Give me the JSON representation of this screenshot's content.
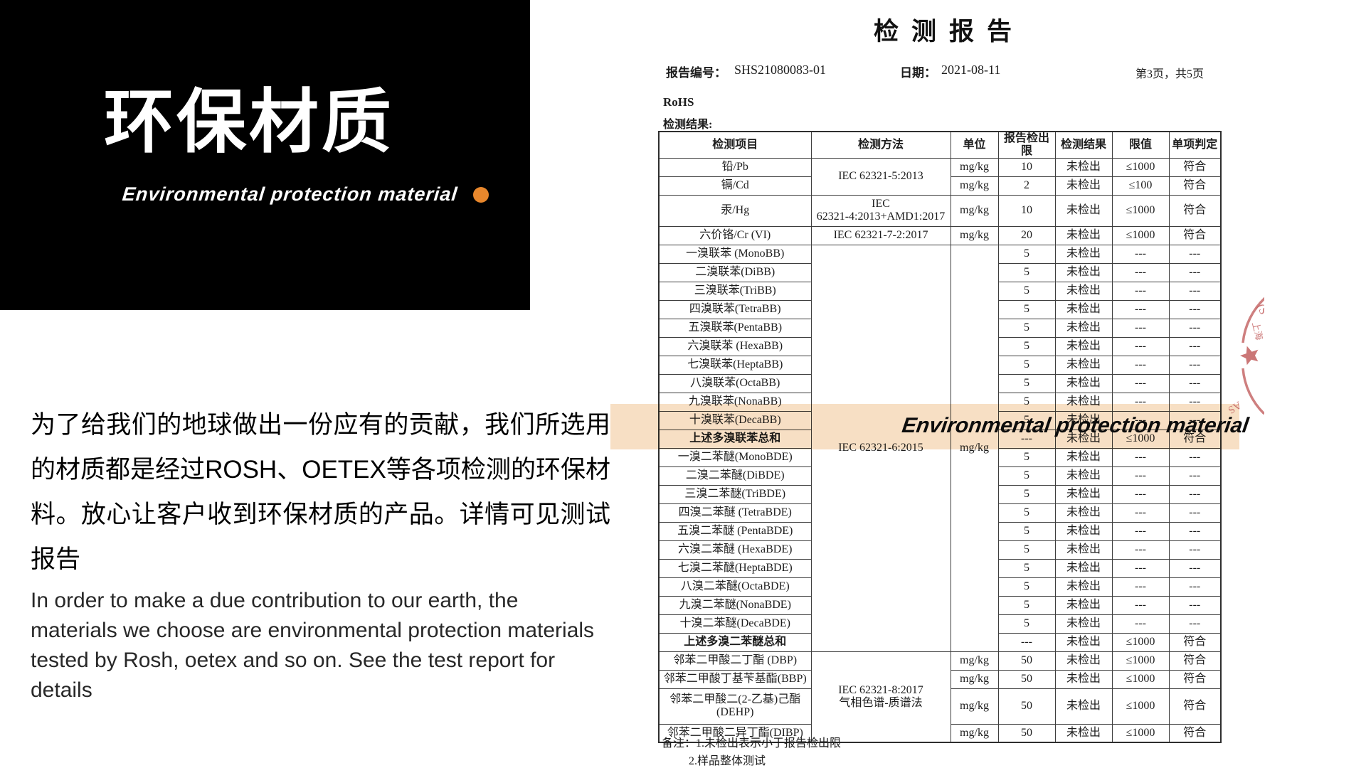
{
  "left_panel": {
    "title": "环保材质",
    "subtitle": "Environmental protection material",
    "accent_color": "#E8872C"
  },
  "intro": {
    "cn": "为了给我们的地球做出一份应有的贡献，我们所选用的材质都是经过ROSH、OETEX等各项检测的环保材料。放心让客户收到环保材质的产品。详情可见测试报告",
    "en": "In order to make a due contribution to our earth, the materials we choose are environmental protection materials tested by Rosh, oetex and so on. See the test report for details"
  },
  "report": {
    "title": "检测报告",
    "report_no_label": "报告编号：",
    "report_no": "SHS21080083-01",
    "date_label": "日期：",
    "date": "2021-08-11",
    "page_info": "第3页，共5页",
    "section": "RoHS",
    "results_label": "检测结果:",
    "overlay_text": "Environmental protection material",
    "stamp": {
      "color": "#c25f5f",
      "fragments": [
        "(S",
        "上海",
        "AS"
      ]
    },
    "notes": [
      "备注：1.未检出表示小于报告检出限",
      "2.样品整体测试"
    ],
    "table": {
      "headers": [
        "检测项目",
        "检测方法",
        "单位",
        "报告检出限",
        "检测结果",
        "限值",
        "单项判定"
      ],
      "rows": [
        {
          "cells": [
            "铅/Pb",
            {
              "t": "IEC 62321-5:2013",
              "rs": 2
            },
            "mg/kg",
            "10",
            "未检出",
            "≤1000",
            "符合"
          ]
        },
        {
          "cells": [
            "镉/Cd",
            null,
            "mg/kg",
            "2",
            "未检出",
            "≤100",
            "符合"
          ]
        },
        {
          "h": 44,
          "cells": [
            "汞/Hg",
            {
              "t": "IEC\n62321-4:2013+AMD1:2017"
            },
            "mg/kg",
            "10",
            "未检出",
            "≤1000",
            "符合"
          ]
        },
        {
          "cells": [
            "六价铬/Cr (VI)",
            "IEC 62321-7-2:2017",
            "mg/kg",
            "20",
            "未检出",
            "≤1000",
            "符合"
          ]
        },
        {
          "cells": [
            "一溴联苯 (MonoBB)",
            {
              "t": "IEC 62321-6:2015",
              "rs": 22
            },
            {
              "t": "mg/kg",
              "rs": 22
            },
            "5",
            "未检出",
            "---",
            "---"
          ]
        },
        {
          "cells": [
            "二溴联苯(DiBB)",
            null,
            null,
            "5",
            "未检出",
            "---",
            "---"
          ]
        },
        {
          "cells": [
            "三溴联苯(TriBB)",
            null,
            null,
            "5",
            "未检出",
            "---",
            "---"
          ]
        },
        {
          "cells": [
            "四溴联苯(TetraBB)",
            null,
            null,
            "5",
            "未检出",
            "---",
            "---"
          ]
        },
        {
          "cells": [
            "五溴联苯(PentaBB)",
            null,
            null,
            "5",
            "未检出",
            "---",
            "---"
          ]
        },
        {
          "cells": [
            "六溴联苯 (HexaBB)",
            null,
            null,
            "5",
            "未检出",
            "---",
            "---"
          ]
        },
        {
          "cells": [
            "七溴联苯(HeptaBB)",
            null,
            null,
            "5",
            "未检出",
            "---",
            "---"
          ]
        },
        {
          "cells": [
            "八溴联苯(OctaBB)",
            null,
            null,
            "5",
            "未检出",
            "---",
            "---"
          ]
        },
        {
          "cells": [
            "九溴联苯(NonaBB)",
            null,
            null,
            "5",
            "未检出",
            "---",
            "---"
          ]
        },
        {
          "cells": [
            "十溴联苯(DecaBB)",
            null,
            null,
            "5",
            "未检出",
            "---",
            "---"
          ]
        },
        {
          "cells": [
            {
              "t": "上述多溴联苯总和",
              "b": true
            },
            null,
            null,
            "---",
            "未检出",
            "≤1000",
            "符合"
          ]
        },
        {
          "cells": [
            "一溴二苯醚(MonoBDE)",
            null,
            null,
            "5",
            "未检出",
            "---",
            "---"
          ]
        },
        {
          "cells": [
            "二溴二苯醚(DiBDE)",
            null,
            null,
            "5",
            "未检出",
            "---",
            "---"
          ]
        },
        {
          "cells": [
            "三溴二苯醚(TriBDE)",
            null,
            null,
            "5",
            "未检出",
            "---",
            "---"
          ]
        },
        {
          "cells": [
            "四溴二苯醚 (TetraBDE)",
            null,
            null,
            "5",
            "未检出",
            "---",
            "---"
          ]
        },
        {
          "cells": [
            "五溴二苯醚 (PentaBDE)",
            null,
            null,
            "5",
            "未检出",
            "---",
            "---"
          ]
        },
        {
          "cells": [
            "六溴二苯醚 (HexaBDE)",
            null,
            null,
            "5",
            "未检出",
            "---",
            "---"
          ]
        },
        {
          "cells": [
            "七溴二苯醚(HeptaBDE)",
            null,
            null,
            "5",
            "未检出",
            "---",
            "---"
          ]
        },
        {
          "cells": [
            "八溴二苯醚(OctaBDE)",
            null,
            null,
            "5",
            "未检出",
            "---",
            "---"
          ]
        },
        {
          "cells": [
            "九溴二苯醚(NonaBDE)",
            null,
            null,
            "5",
            "未检出",
            "---",
            "---"
          ]
        },
        {
          "cells": [
            "十溴二苯醚(DecaBDE)",
            null,
            null,
            "5",
            "未检出",
            "---",
            "---"
          ]
        },
        {
          "cells": [
            {
              "t": "上述多溴二苯醚总和",
              "b": true
            },
            null,
            null,
            "---",
            "未检出",
            "≤1000",
            "符合"
          ]
        },
        {
          "cells": [
            "邻苯二甲酸二丁酯 (DBP)",
            {
              "t": "IEC 62321-8:2017\n气相色谱-质谱法",
              "rs": 4
            },
            "mg/kg",
            "50",
            "未检出",
            "≤1000",
            "符合"
          ]
        },
        {
          "cells": [
            "邻苯二甲酸丁基苄基酯(BBP)",
            null,
            "mg/kg",
            "50",
            "未检出",
            "≤1000",
            "符合"
          ]
        },
        {
          "h": 50,
          "cells": [
            {
              "t": "邻苯二甲酸二(2-乙基)己酯\n(DEHP)"
            },
            null,
            "mg/kg",
            "50",
            "未检出",
            "≤1000",
            "符合"
          ]
        },
        {
          "cells": [
            "邻苯二甲酸二异丁酯(DIBP)",
            null,
            "mg/kg",
            "50",
            "未检出",
            "≤1000",
            "符合"
          ]
        }
      ]
    }
  }
}
